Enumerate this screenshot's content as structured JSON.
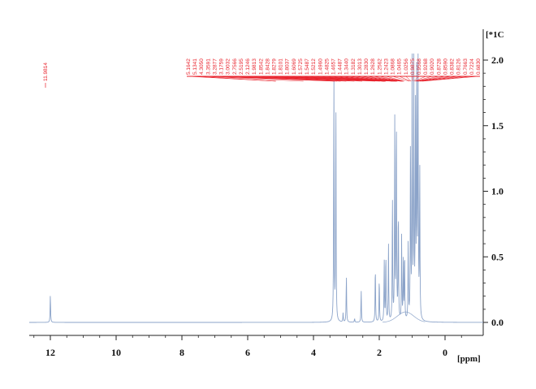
{
  "chart_data": {
    "type": "line",
    "title": "",
    "xlabel": "[ppm]",
    "ylabel": "",
    "y_multiplier_label": "[*1C",
    "xlim": [
      12.8,
      -1.0
    ],
    "x_reversed": true,
    "ylim": [
      -0.1,
      2.05
    ],
    "x_ticks": [
      12,
      10,
      8,
      6,
      4,
      2,
      0
    ],
    "x_tick_labels": [
      "12",
      "10",
      "8",
      "6",
      "4",
      "2",
      "0"
    ],
    "y_ticks": [
      0.0,
      0.5,
      1.0,
      1.5,
      2.0
    ],
    "y_tick_labels": [
      "0.0",
      "0.5",
      "1.0",
      "1.5",
      "2.0"
    ],
    "grid": false,
    "line_color": "#8ba3c9",
    "peak_label_color": "#e8202a",
    "peak_labels_left": [
      "11.9814"
    ],
    "peak_labels_cluster": [
      "5.1642",
      "5.1341",
      "4.3050",
      "3.3591",
      "3.2877",
      "3.1759",
      "3.0032",
      "2.7566",
      "2.5195",
      "2.1246",
      "1.9813",
      "1.8542",
      "1.8428",
      "1.8279",
      "1.8101",
      "1.8037",
      "1.6069",
      "1.5725",
      "1.5487",
      "1.5212",
      "1.4960",
      "1.4825",
      "1.4657",
      "1.4487",
      "1.3440",
      "1.3182",
      "1.3013",
      "1.2830",
      "1.2628",
      "1.2562",
      "1.2423",
      "1.0868",
      "1.0465",
      "1.0256",
      "0.9875",
      "0.9568",
      "0.9268",
      "0.9020",
      "0.8728",
      "0.8590",
      "0.8382",
      "0.8126",
      "0.7663",
      "0.7224",
      "0.6830"
    ],
    "peaks": [
      {
        "x": 12.0,
        "y": 0.22
      },
      {
        "x": 3.38,
        "y": 1.95
      },
      {
        "x": 3.32,
        "y": 1.75
      },
      {
        "x": 3.1,
        "y": 0.07
      },
      {
        "x": 3.0,
        "y": 0.37
      },
      {
        "x": 2.75,
        "y": 0.03
      },
      {
        "x": 2.55,
        "y": 0.25
      },
      {
        "x": 2.12,
        "y": 0.45
      },
      {
        "x": 2.0,
        "y": 0.35
      },
      {
        "x": 1.85,
        "y": 0.48
      },
      {
        "x": 1.8,
        "y": 0.55
      },
      {
        "x": 1.72,
        "y": 0.6
      },
      {
        "x": 1.6,
        "y": 0.98
      },
      {
        "x": 1.53,
        "y": 1.58
      },
      {
        "x": 1.48,
        "y": 1.65
      },
      {
        "x": 1.42,
        "y": 0.9
      },
      {
        "x": 1.32,
        "y": 0.65
      },
      {
        "x": 1.27,
        "y": 0.45
      },
      {
        "x": 1.23,
        "y": 0.55
      },
      {
        "x": 1.12,
        "y": 0.62
      },
      {
        "x": 1.05,
        "y": 1.45
      },
      {
        "x": 1.0,
        "y": 2.05
      },
      {
        "x": 0.95,
        "y": 2.05
      },
      {
        "x": 0.9,
        "y": 1.7
      },
      {
        "x": 0.86,
        "y": 2.05
      },
      {
        "x": 0.82,
        "y": 2.05
      },
      {
        "x": 0.77,
        "y": 1.2
      }
    ],
    "baseline": 0.0
  }
}
